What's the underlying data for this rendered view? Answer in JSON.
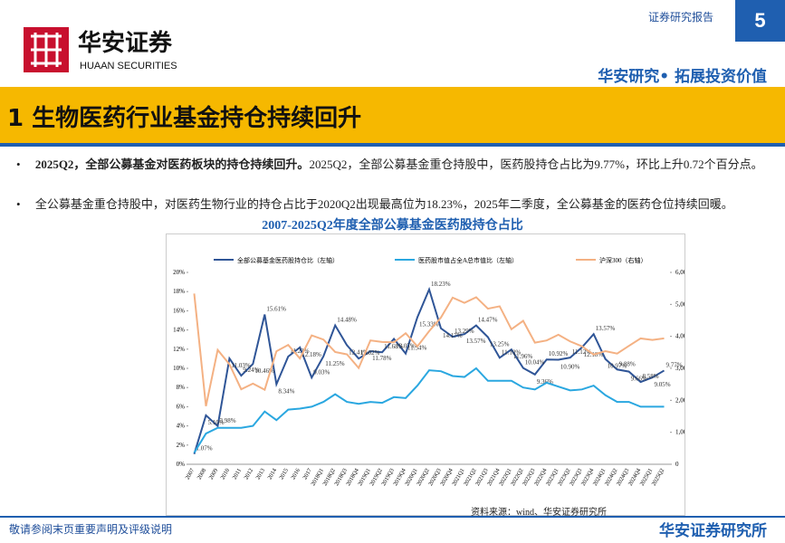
{
  "header": {
    "brand": "华安证券",
    "brand_en": "HUAAN SECURITIES",
    "report_type": "证券研究报告",
    "page": "5",
    "slogan": "华安研究• 拓展投资价值"
  },
  "section": {
    "title": "1 生物医药行业基金持仓持续回升"
  },
  "bullets": [
    {
      "lead": "2025Q2，全部公募基金对医药板块的持仓持续回升。",
      "text": "2025Q2，全部公募基金重仓持股中，医药股持仓占比为9.77%，环比上升0.72个百分点。"
    },
    {
      "lead": "",
      "text": "全公募基金重仓持股中，对医药生物行业的持仓占比于2020Q2出现最高位为18.23%，2025年二季度，全公募基金的医药仓位持续回暖。"
    }
  ],
  "chart_data": {
    "type": "line",
    "title": "2007-2025Q2年度全部公募基金医药股持仓占比",
    "categories": [
      "2007",
      "2008",
      "2009",
      "2010",
      "2011",
      "2012",
      "2013",
      "2014",
      "2015",
      "2016",
      "2017",
      "2018Q1",
      "2018Q2",
      "2018Q3",
      "2018Q4",
      "2019Q1",
      "2019Q2",
      "2019Q3",
      "2019Q4",
      "2020Q1",
      "2020Q2",
      "2020Q3",
      "2020Q4",
      "2021Q1",
      "2021Q2",
      "2021Q3",
      "2021Q4",
      "2022Q1",
      "2022Q2",
      "2022Q3",
      "2022Q4",
      "2023Q1",
      "2023Q2",
      "2023Q3",
      "2023Q4",
      "2024Q1",
      "2024Q2",
      "2024Q3",
      "2024Q4",
      "2025Q1",
      "2025Q2"
    ],
    "series": [
      {
        "name": "全部公募基金医药股持仓比（左轴）",
        "color": "#2f5597",
        "values": [
          1.07,
          5.1,
          3.98,
          11.03,
          9.24,
          10.46,
          15.61,
          8.34,
          11.23,
          12.18,
          9.03,
          11.25,
          14.48,
          12.41,
          11.02,
          11.78,
          11.68,
          13.07,
          11.54,
          15.33,
          18.23,
          14.17,
          13.29,
          13.57,
          14.47,
          13.25,
          11.1,
          11.96,
          10.04,
          9.36,
          10.92,
          10.9,
          11.12,
          12.18,
          13.57,
          10.97,
          9.88,
          9.66,
          8.58,
          9.05,
          9.77
        ],
        "value_labels": [
          "1.07%",
          "5.10%",
          "3.98%",
          "11.03%",
          "9.24%",
          "10.46%",
          "15.61%",
          "8.34%",
          "11.23%",
          "12.18%",
          "9.03%",
          "11.25%",
          "14.48%",
          "12.41%",
          "11.02%",
          "11.78%",
          "11.68%",
          "13.07%",
          "11.54%",
          "15.33%",
          "18.23%",
          "14.17%",
          "13.29%",
          "13.57%",
          "14.47%",
          "13.25%",
          "11.10%",
          "11.96%",
          "10.04%",
          "9.36%",
          "10.92%",
          "10.90%",
          "11.12%",
          "12.18%",
          "13.57%",
          "10.97%",
          "9.88%",
          "9.66%",
          "8.58%",
          "9.05%",
          "9.77%"
        ]
      },
      {
        "name": "医药股市值占全A总市值比（左轴）",
        "color": "#2aa7e0",
        "values": [
          1.2,
          3.2,
          3.8,
          3.8,
          3.8,
          4.0,
          5.5,
          4.6,
          5.7,
          5.8,
          6.0,
          6.5,
          7.3,
          6.5,
          6.3,
          6.5,
          6.4,
          7.0,
          6.9,
          8.2,
          9.8,
          9.7,
          9.2,
          9.1,
          10.0,
          8.7,
          8.7,
          8.7,
          8.0,
          7.8,
          8.5,
          8.1,
          7.7,
          7.8,
          8.2,
          7.2,
          6.5,
          6.5,
          6.0,
          6.0,
          6.0
        ]
      },
      {
        "name": "沪深300（右轴）",
        "color": "#f4b183",
        "axis": "y2",
        "values": [
          5338,
          1817,
          3575,
          3128,
          2346,
          2523,
          2331,
          3534,
          3731,
          3310,
          4030,
          3899,
          3510,
          3438,
          3011,
          3872,
          3826,
          3814,
          4097,
          3686,
          4163,
          4587,
          5211,
          5048,
          5224,
          4866,
          4940,
          4222,
          4485,
          3804,
          3872,
          4051,
          3842,
          3690,
          3431,
          3537,
          3462,
          3703,
          3935,
          3887,
          3936
        ]
      }
    ],
    "ylim": [
      0,
      20
    ],
    "yticks": [
      {
        "value": 0,
        "label": "0%"
      },
      {
        "value": 2,
        "label": "2%"
      },
      {
        "value": 4,
        "label": "4%"
      },
      {
        "value": 6,
        "label": "6%"
      },
      {
        "value": 8,
        "label": "8%"
      },
      {
        "value": 10,
        "label": "10%"
      },
      {
        "value": 12,
        "label": "12%"
      },
      {
        "value": 14,
        "label": "14%"
      },
      {
        "value": 16,
        "label": "16%"
      },
      {
        "value": 18,
        "label": "18%"
      },
      {
        "value": 20,
        "label": "20%"
      }
    ],
    "y2lim": [
      0,
      6000
    ],
    "y2ticks": [
      0,
      {
        "value": 1000,
        "label": "1,000"
      },
      {
        "value": 2000,
        "label": "2,000"
      },
      {
        "value": 3000,
        "label": "3,000"
      },
      {
        "value": 4000,
        "label": "4,000"
      },
      {
        "value": 5000,
        "label": "5,000"
      },
      {
        "value": 6000,
        "label": "6,000"
      }
    ],
    "source": "资料来源：wind、华安证券研究所"
  },
  "footer": {
    "disclaimer": "敬请参阅末页重要声明及评级说明",
    "institute": "华安证券研究所"
  }
}
